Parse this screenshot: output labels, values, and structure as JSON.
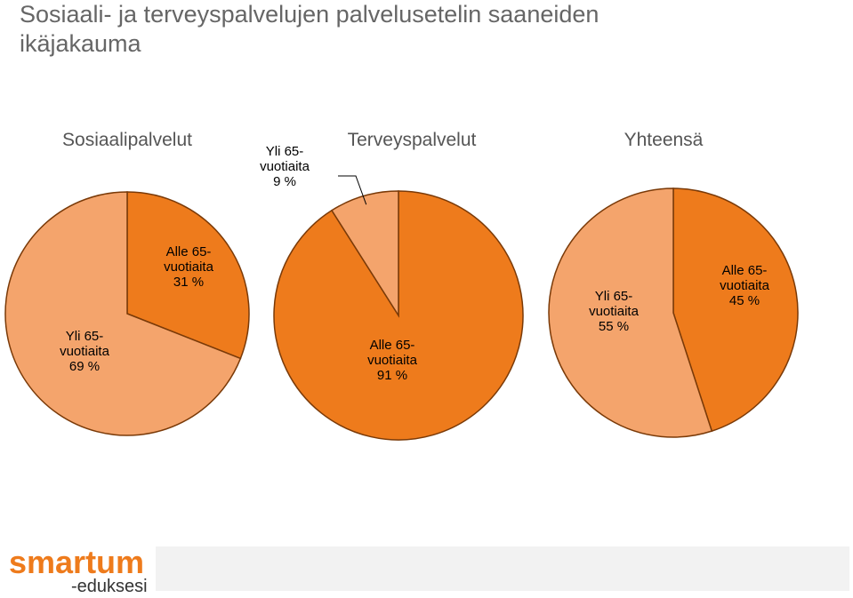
{
  "title": "Sosiaali- ja terveyspalvelujen palvelusetelin saaneiden ikäjakauma",
  "chart_data": [
    {
      "type": "pie",
      "title": "Sosiaalipalvelut",
      "categories": [
        "Alle 65-vuotiaita",
        "Yli 65-vuotiaita"
      ],
      "values": [
        31,
        69
      ],
      "value_labels": [
        "31 %",
        "69 %"
      ],
      "colors": [
        "#ee7b1c",
        "#f4a46c"
      ]
    },
    {
      "type": "pie",
      "title": "Terveyspalvelut",
      "categories": [
        "Alle 65-vuotiaita",
        "Yli 65-vuotiaita"
      ],
      "values": [
        91,
        9
      ],
      "value_labels": [
        "91 %",
        "9 %"
      ],
      "colors": [
        "#ee7b1c",
        "#f4a46c"
      ]
    },
    {
      "type": "pie",
      "title": "Yhteensä",
      "categories": [
        "Alle 65-vuotiaita",
        "Yli 65-vuotiaita"
      ],
      "values": [
        45,
        55
      ],
      "value_labels": [
        "45 %",
        "55 %"
      ],
      "colors": [
        "#ee7b1c",
        "#f4a46c"
      ]
    }
  ],
  "logo": {
    "brand": "smartum",
    "tagline": "-eduksesi"
  }
}
